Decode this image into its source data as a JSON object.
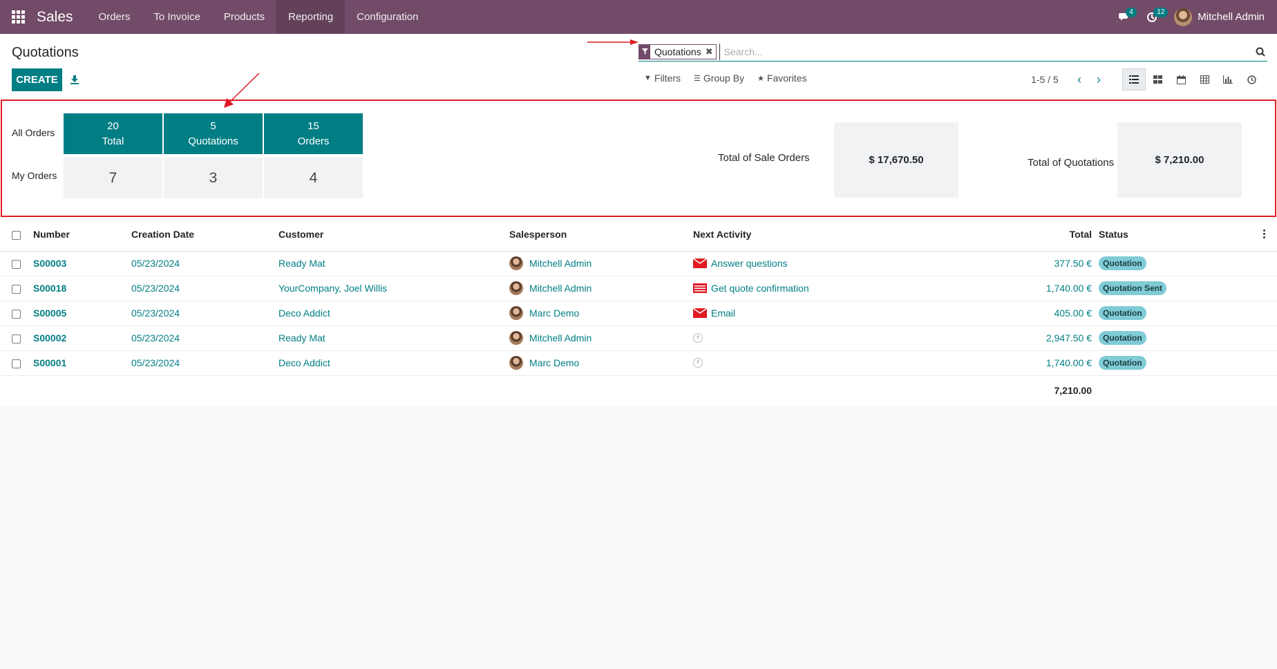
{
  "navbar": {
    "brand": "Sales",
    "menu": [
      "Orders",
      "To Invoice",
      "Products",
      "Reporting",
      "Configuration"
    ],
    "active_menu": "Reporting",
    "messages_count": "4",
    "activities_count": "12",
    "user_name": "Mitchell Admin",
    "bg_color": "#714b67"
  },
  "control_panel": {
    "title": "Quotations",
    "create_label": "CREATE",
    "search": {
      "facet_label": "Quotations",
      "placeholder": "Search..."
    },
    "filters_label": "Filters",
    "groupby_label": "Group By",
    "favorites_label": "Favorites",
    "pager": "1-5 / 5",
    "views": [
      "list-view-icon",
      "kanban-view-icon",
      "calendar-view-icon",
      "pivot-view-icon",
      "graph-view-icon",
      "activity-view-icon"
    ]
  },
  "dashboard": {
    "all_orders_label": "All Orders",
    "my_orders_label": "My Orders",
    "tiles": [
      {
        "count": "20",
        "label": "Total",
        "my": "7"
      },
      {
        "count": "5",
        "label": "Quotations",
        "my": "3"
      },
      {
        "count": "15",
        "label": "Orders",
        "my": "4"
      }
    ],
    "total_sale_orders_label": "Total of Sale Orders",
    "total_sale_orders_value": "$ 17,670.50",
    "total_quotations_label": "Total of Quotations",
    "total_quotations_value": "$ 7,210.00"
  },
  "table": {
    "columns": [
      "Number",
      "Creation Date",
      "Customer",
      "Salesperson",
      "Next Activity",
      "Total",
      "Status"
    ],
    "rows": [
      {
        "number": "S00003",
        "date": "05/23/2024",
        "customer": "Ready Mat",
        "salesperson": "Mitchell Admin",
        "activity": "Answer questions",
        "activity_icon": "email-icon",
        "total": "377.50 €",
        "status": "Quotation"
      },
      {
        "number": "S00018",
        "date": "05/23/2024",
        "customer": "YourCompany, Joel Willis",
        "salesperson": "Mitchell Admin",
        "activity": "Get quote confirmation",
        "activity_icon": "tasks-icon",
        "total": "1,740.00 €",
        "status": "Quotation Sent"
      },
      {
        "number": "S00005",
        "date": "05/23/2024",
        "customer": "Deco Addict",
        "salesperson": "Marc Demo",
        "activity": "Email",
        "activity_icon": "email-icon",
        "total": "405.00 €",
        "status": "Quotation"
      },
      {
        "number": "S00002",
        "date": "05/23/2024",
        "customer": "Ready Mat",
        "salesperson": "Mitchell Admin",
        "activity": "",
        "activity_icon": "clock-icon",
        "total": "2,947.50 €",
        "status": "Quotation"
      },
      {
        "number": "S00001",
        "date": "05/23/2024",
        "customer": "Deco Addict",
        "salesperson": "Marc Demo",
        "activity": "",
        "activity_icon": "clock-icon",
        "total": "1,740.00 €",
        "status": "Quotation"
      }
    ],
    "grand_total": "7,210.00"
  },
  "colors": {
    "primary": "#017e84",
    "brand": "#714b67",
    "annotation": "#e01b24",
    "status_pill": "#7fcbd6"
  }
}
